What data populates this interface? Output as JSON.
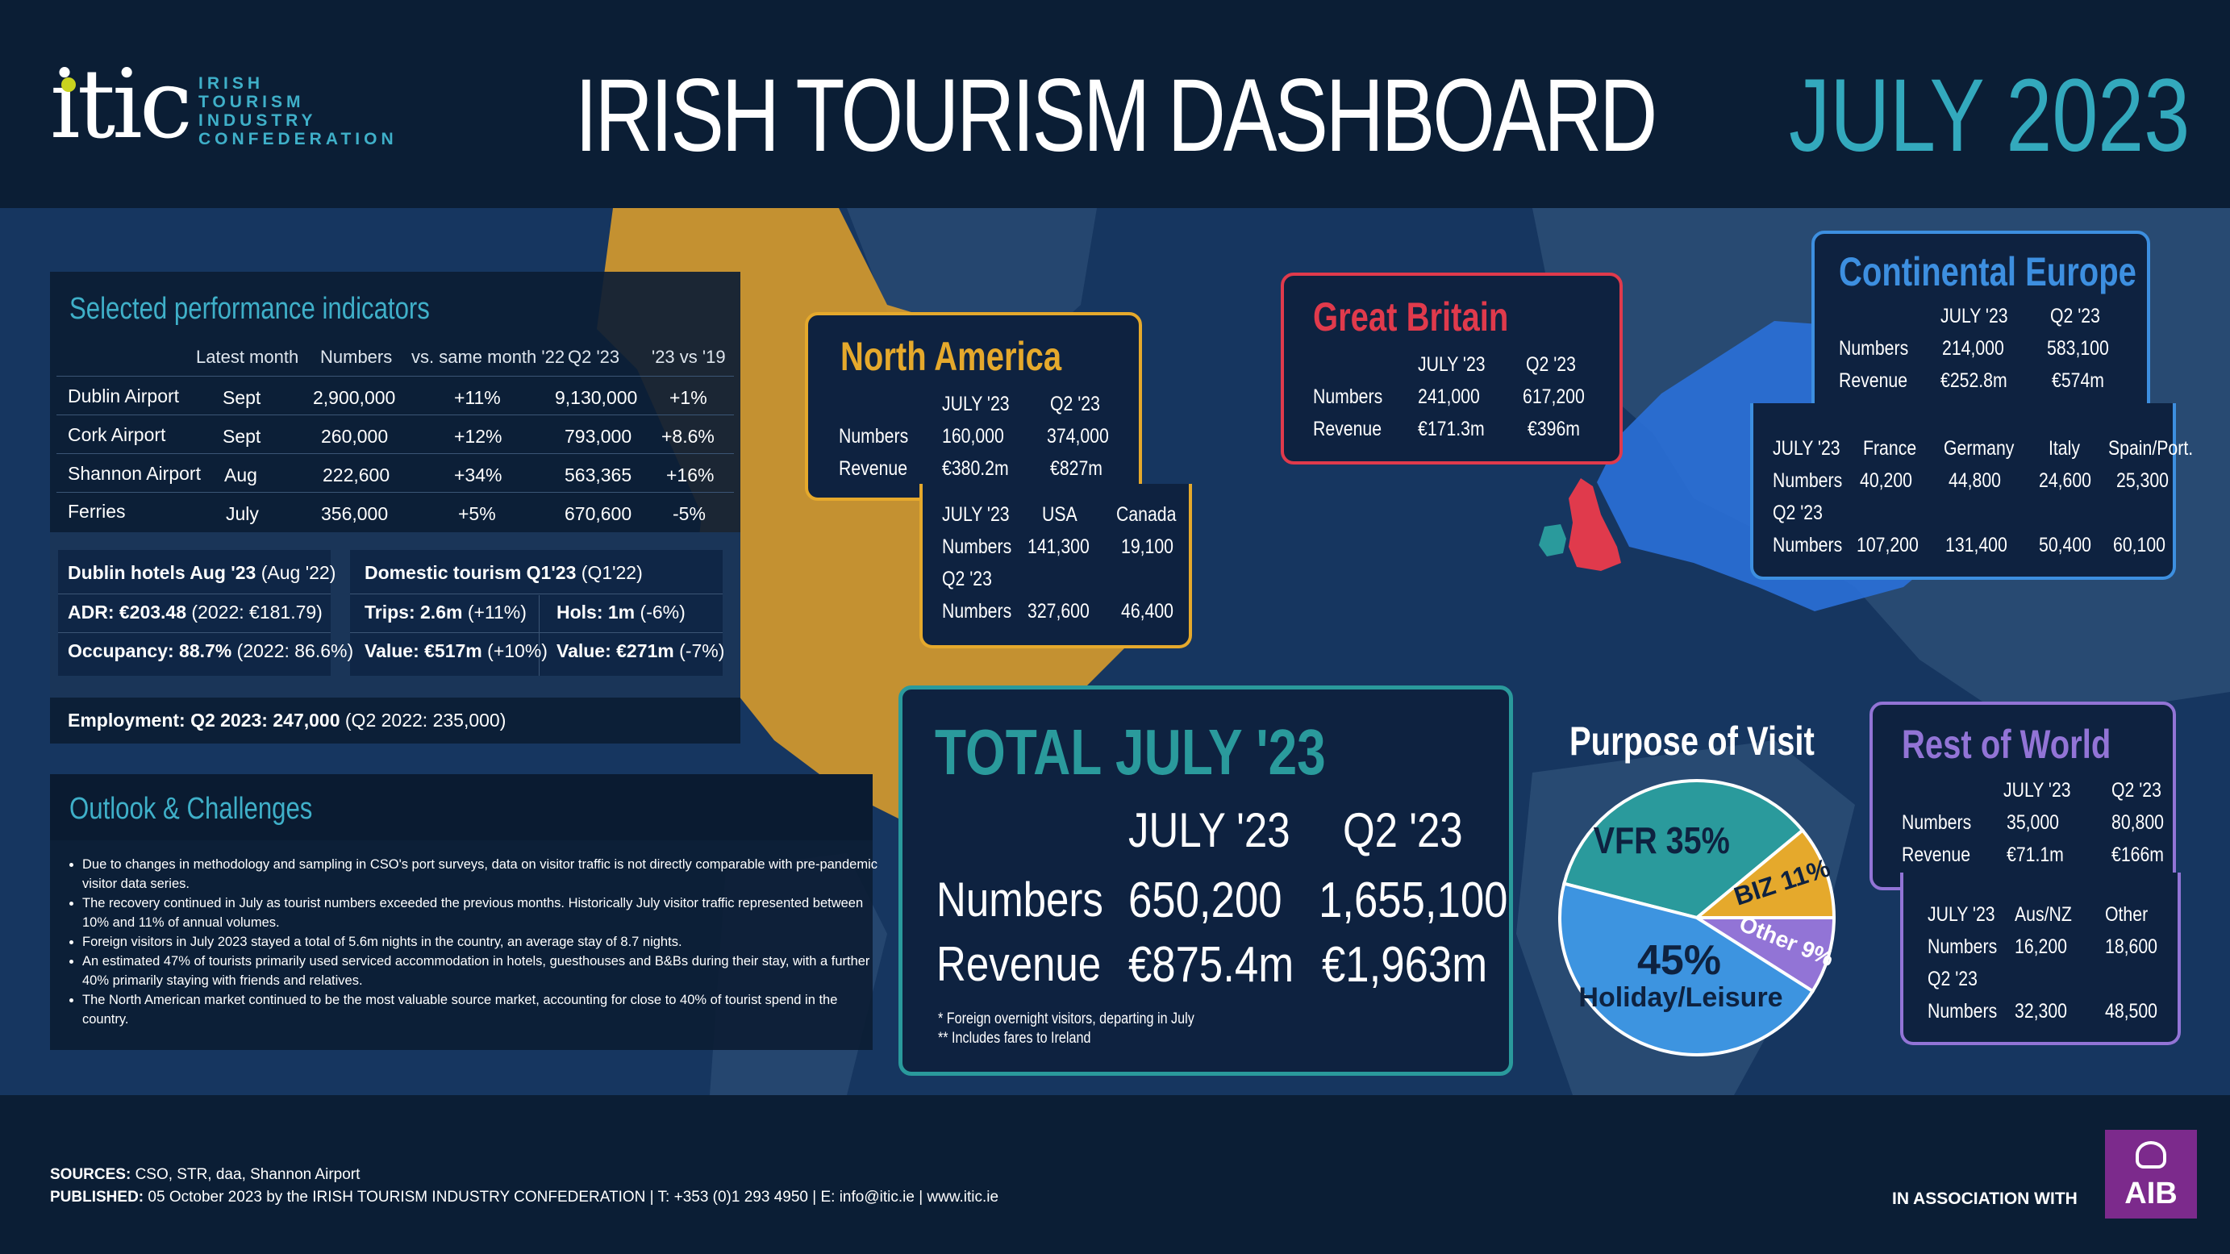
{
  "header": {
    "logo_word": "itic",
    "logo_sub": [
      "IRISH",
      "TOURISM",
      "INDUSTRY",
      "CONFEDERATION"
    ],
    "title": "IRISH TOURISM DASHBOARD",
    "date": "JULY 2023"
  },
  "indicators": {
    "title": "Selected performance indicators",
    "columns": [
      "Latest month",
      "Numbers",
      "vs. same month '22",
      "Q2 '23",
      "'23 vs '19"
    ],
    "rows": [
      {
        "name": "Dublin Airport",
        "month": "Sept",
        "numbers": "2,900,000",
        "vs": "+11%",
        "q2": "9,130,000",
        "vs19": "+1%"
      },
      {
        "name": "Cork Airport",
        "month": "Sept",
        "numbers": "260,000",
        "vs": "+12%",
        "q2": "793,000",
        "vs19": "+8.6%"
      },
      {
        "name": "Shannon Airport",
        "month": "Aug",
        "numbers": "222,600",
        "vs": "+34%",
        "q2": "563,365",
        "vs19": "+16%"
      },
      {
        "name": "Ferries",
        "month": "July",
        "numbers": "356,000",
        "vs": "+5%",
        "q2": "670,600",
        "vs19": "-5%"
      }
    ],
    "hotels_head_bold": "Dublin hotels  Aug '23",
    "hotels_head_rest": " (Aug '22)",
    "adr_bold": "ADR: €203.48",
    "adr_rest": "  (2022: €181.79)",
    "occ_bold": "Occupancy: 88.7%",
    "occ_rest": "  (2022: 86.6%)",
    "dom_head_bold": "Domestic tourism Q1'23",
    "dom_head_rest": " (Q1'22)",
    "trips_bold": "Trips: 2.6m",
    "trips_rest": " (+11%)",
    "hols_bold": "Hols: 1m",
    "hols_rest": " (-6%)",
    "value1_bold": "Value: €517m",
    "value1_rest": " (+10%)",
    "value2_bold": "Value: €271m",
    "value2_rest": " (-7%)",
    "employment_bold": "Employment: Q2 2023: 247,000",
    "employment_rest": " (Q2 2022: 235,000)"
  },
  "outlook": {
    "title": "Outlook & Challenges",
    "bullets": [
      "Due to changes in methodology and sampling in CSO's port surveys, data on visitor traffic is not directly comparable with pre-pandemic visitor data series.",
      "The recovery continued in July as tourist numbers exceeded the previous months. Historically July visitor traffic represented between 10% and 11% of annual volumes.",
      "Foreign visitors in July 2023 stayed a total of 5.6m nights in the country, an average stay of 8.7 nights.",
      "An estimated 47% of tourists primarily used serviced accommodation in hotels, guesthouses and B&Bs during their stay, with a further 40% primarily staying with friends and relatives.",
      "The North American market continued to be the most valuable source market, accounting for close to 40% of tourist spend in the country."
    ]
  },
  "north_america": {
    "title": "North America",
    "col1": "JULY '23",
    "col2": "Q2 '23",
    "numbers_label": "Numbers",
    "numbers1": "160,000",
    "numbers2": "374,000",
    "revenue_label": "Revenue",
    "revenue1": "€380.2m",
    "revenue2": "€827m",
    "sub": {
      "july": "JULY '23",
      "c1": "USA",
      "c2": "Canada",
      "numbers_label": "Numbers",
      "n1": "141,300",
      "n2": "19,100",
      "q2": "Q2 '23",
      "q1": "327,600",
      "q2v": "46,400"
    }
  },
  "great_britain": {
    "title": "Great Britain",
    "col1": "JULY '23",
    "col2": "Q2 '23",
    "numbers_label": "Numbers",
    "numbers1": "241,000",
    "numbers2": "617,200",
    "revenue_label": "Revenue",
    "revenue1": "€171.3m",
    "revenue2": "€396m"
  },
  "continental_europe": {
    "title": "Continental Europe",
    "col1": "JULY '23",
    "col2": "Q2 '23",
    "numbers_label": "Numbers",
    "numbers1": "214,000",
    "numbers2": "583,100",
    "revenue_label": "Revenue",
    "revenue1": "€252.8m",
    "revenue2": "€574m",
    "sub": {
      "july": "JULY '23",
      "countries": [
        "France",
        "Germany",
        "Italy",
        "Spain/Port."
      ],
      "numbers_label": "Numbers",
      "july_vals": [
        "40,200",
        "44,800",
        "24,600",
        "25,300"
      ],
      "q2": "Q2 '23",
      "q2_vals": [
        "107,200",
        "131,400",
        "50,400",
        "60,100"
      ]
    }
  },
  "rest_of_world": {
    "title": "Rest of World",
    "col1": "JULY '23",
    "col2": "Q2 '23",
    "numbers_label": "Numbers",
    "numbers1": "35,000",
    "numbers2": "80,800",
    "revenue_label": "Revenue",
    "revenue1": "€71.1m",
    "revenue2": "€166m",
    "sub": {
      "july": "JULY '23",
      "c1": "Aus/NZ",
      "c2": "Other",
      "numbers_label": "Numbers",
      "n1": "16,200",
      "n2": "18,600",
      "q2": "Q2 '23",
      "q1": "32,300",
      "q2v": "48,500"
    }
  },
  "total": {
    "title": "TOTAL JULY '23",
    "col1": "JULY '23",
    "col2": "Q2 '23",
    "numbers_label": "Numbers",
    "numbers1": "650,200",
    "numbers2": "1,655,100",
    "revenue_label": "Revenue",
    "revenue1": "€875.4m",
    "revenue2": "€1,963m",
    "note1": "*  Foreign overnight visitors, departing in July",
    "note2": "** Includes fares to Ireland"
  },
  "purpose": {
    "title": "Purpose of Visit",
    "slices": [
      {
        "label": "VFR 35%",
        "value": 35,
        "color": "#2a9a9c"
      },
      {
        "label": "BIZ 11%",
        "value": 11,
        "color": "#e5a92c"
      },
      {
        "label": "Other 9%",
        "value": 9,
        "color": "#9274d6"
      },
      {
        "label_top": "45%",
        "label_bottom": "Holiday/Leisure",
        "value": 45,
        "color": "#3d94e0"
      }
    ]
  },
  "footer": {
    "sources_bold": "SOURCES:",
    "sources": " CSO, STR, daa, Shannon Airport",
    "published_bold": "PUBLISHED:",
    "published": " 05 October 2023 by the IRISH TOURISM INDUSTRY CONFEDERATION  |  T: +353 (0)1 293 4950  |  E: info@itic.ie  |  www.itic.ie",
    "assoc": "IN ASSOCIATION WITH",
    "aib": "AIB"
  },
  "colors": {
    "na": "#e5a92c",
    "gb": "#e03a4c",
    "ce": "#3d8fe0",
    "row": "#9274d6",
    "total": "#2a9a9c",
    "map_na": "#d4992e",
    "map_eu": "#2a6fd6"
  }
}
